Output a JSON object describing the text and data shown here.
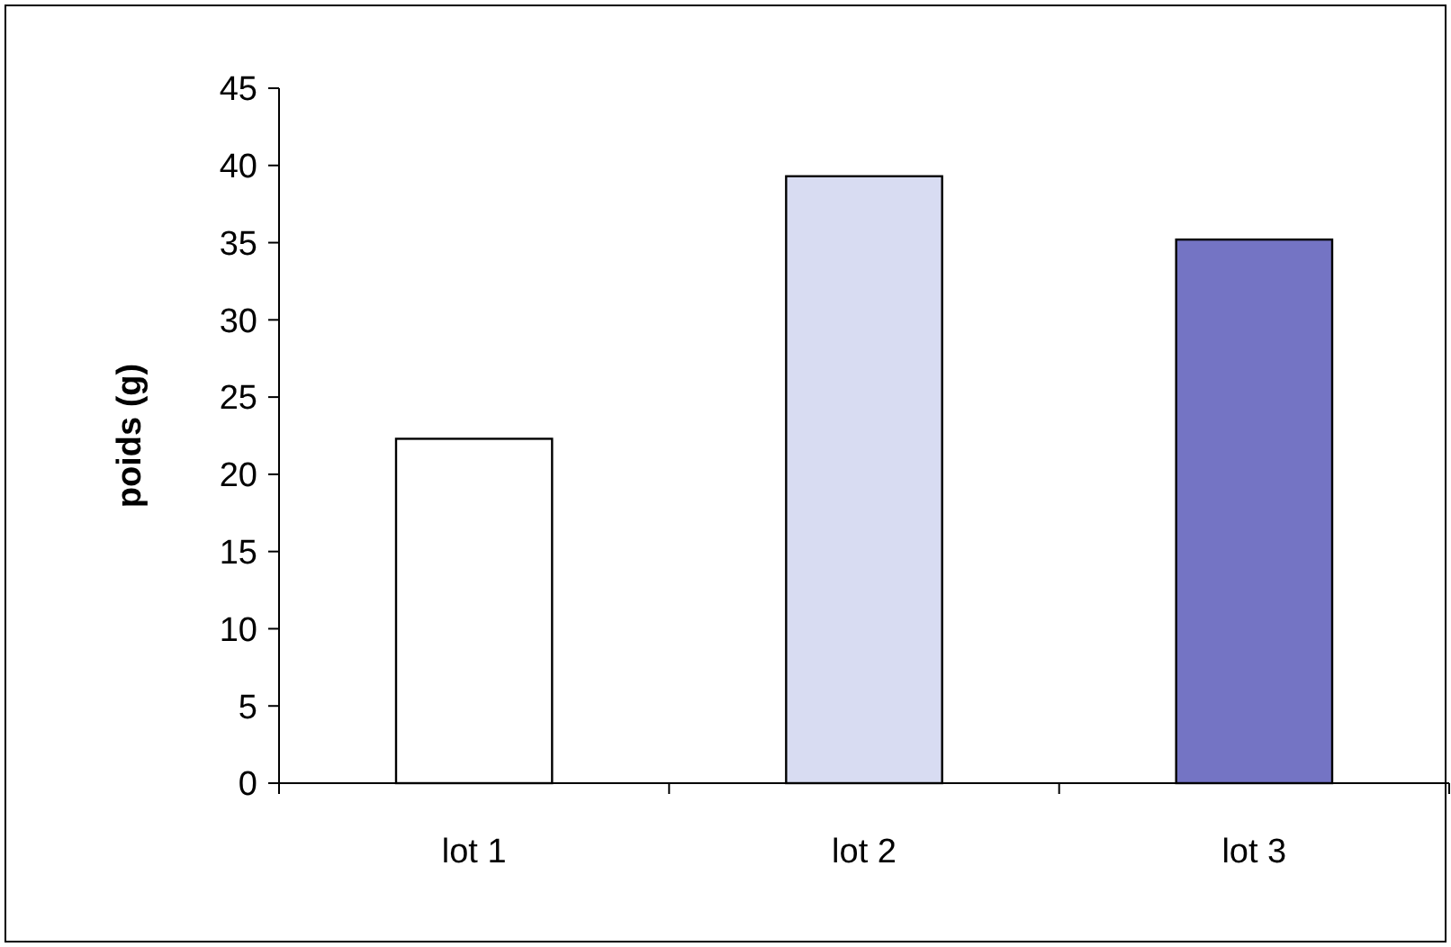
{
  "chart_data": {
    "type": "bar",
    "ylabel": "poids (g)",
    "categories": [
      "lot 1",
      "lot 2",
      "lot 3"
    ],
    "values": [
      22.3,
      39.3,
      35.2
    ],
    "colors": [
      "#ffffff",
      "#d8dcf2",
      "#7474c4"
    ],
    "ylim": [
      0,
      45
    ],
    "yticks": [
      0,
      5,
      10,
      15,
      20,
      25,
      30,
      35,
      40,
      45
    ]
  }
}
